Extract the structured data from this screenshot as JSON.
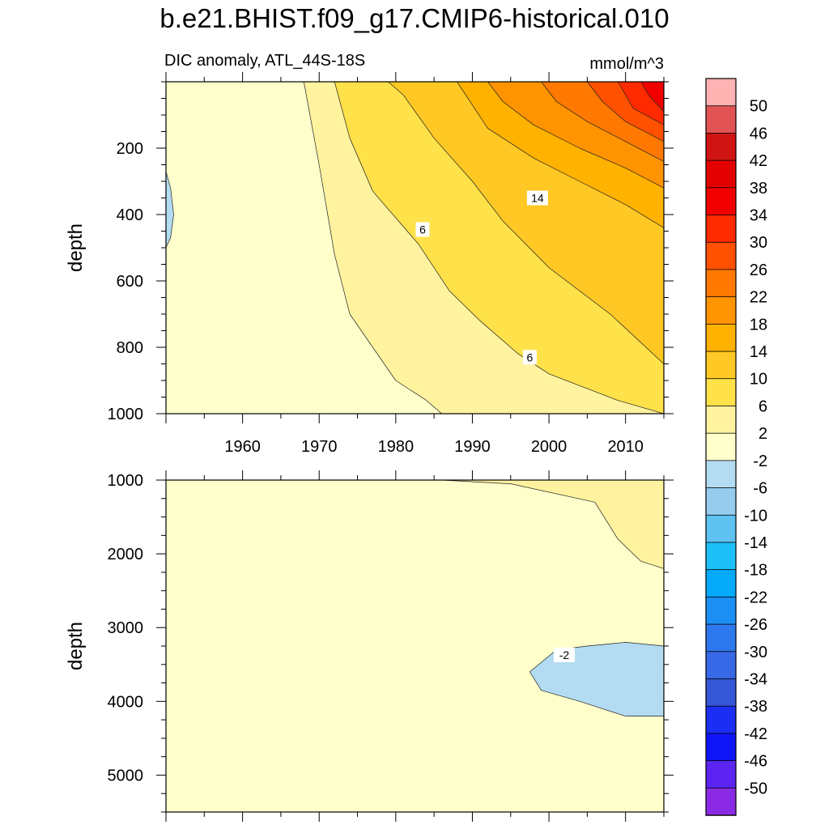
{
  "chart_data": [
    {
      "type": "heatmap",
      "title": "b.e21.BHIST.f09_g17.CMIP6-historical.010",
      "subtitle_left": "DIC anomaly, ATL_44S-18S",
      "subtitle_right": "mmol/m^3",
      "panel": "upper",
      "xlabel": "",
      "ylabel": "depth",
      "xlim": [
        1950,
        2015
      ],
      "ylim": [
        1000,
        0
      ],
      "xticks": [
        1960,
        1970,
        1980,
        1990,
        2000,
        2010
      ],
      "xtick_labels": [
        "1960",
        "1970",
        "1980",
        "1990",
        "2000",
        "2010"
      ],
      "yticks": [
        200,
        400,
        600,
        800,
        1000
      ],
      "ytick_labels": [
        "200",
        "400",
        "600",
        "800",
        "1000"
      ],
      "contour_labels": [
        {
          "text": "6",
          "x": 1983.5,
          "y": 445
        },
        {
          "text": "14",
          "x": 1998.5,
          "y": 350
        },
        {
          "text": "6",
          "x": 1997.5,
          "y": 830
        }
      ],
      "bands": [
        {
          "level": "-6 to -2",
          "color": "#b3dcf2",
          "x": [
            1950,
            1950.6,
            1951,
            1950.6,
            1950
          ],
          "y": [
            270,
            320,
            400,
            470,
            500
          ]
        },
        {
          "level": "2 to 6",
          "color": "#fff3a0",
          "x": [
            2015,
            1986,
            1984,
            1980,
            1974,
            1972,
            1970,
            1968,
            1968,
            2015
          ],
          "y": [
            1000,
            1000,
            960,
            900,
            700,
            520,
            250,
            0,
            0,
            0
          ]
        },
        {
          "level": "6 to 10",
          "color": "#ffe14a",
          "x": [
            2015,
            2009,
            2000,
            1996,
            1991,
            1987,
            1983,
            1977,
            1974,
            1972,
            1974,
            2015
          ],
          "y": [
            1000,
            960,
            880,
            820,
            720,
            630,
            490,
            330,
            170,
            0,
            0,
            0
          ]
        },
        {
          "level": "10 to 14",
          "color": "#ffc825",
          "x": [
            2015,
            2015,
            2008,
            2000,
            1994,
            1990,
            1985,
            1981,
            1979,
            2015
          ],
          "y": [
            0,
            850,
            700,
            560,
            420,
            300,
            170,
            40,
            0,
            0
          ]
        },
        {
          "level": "14 to 18",
          "color": "#ffb200",
          "x": [
            2015,
            2015,
            2010,
            2004,
            1998,
            1992,
            1988,
            2015
          ],
          "y": [
            0,
            440,
            370,
            300,
            230,
            140,
            0,
            0
          ]
        },
        {
          "level": "18 to 22",
          "color": "#ff9300",
          "x": [
            2015,
            2015,
            2010,
            2004,
            1998,
            1994,
            1992,
            2015
          ],
          "y": [
            0,
            320,
            260,
            200,
            130,
            60,
            0,
            0
          ]
        },
        {
          "level": "22 to 26",
          "color": "#ff7800",
          "x": [
            2015,
            2015,
            2010,
            2005,
            2001,
            1999,
            2015
          ],
          "y": [
            0,
            240,
            180,
            120,
            60,
            0,
            0
          ]
        },
        {
          "level": "26 to 30",
          "color": "#ff5100",
          "x": [
            2015,
            2015,
            2010,
            2007,
            2005,
            2015
          ],
          "y": [
            0,
            180,
            120,
            60,
            0,
            0
          ]
        },
        {
          "level": "30 to 34",
          "color": "#ff2a00",
          "x": [
            2015,
            2015,
            2011,
            2009,
            2015
          ],
          "y": [
            0,
            130,
            80,
            0,
            0
          ]
        },
        {
          "level": "34 to 38",
          "color": "#f20000",
          "x": [
            2015,
            2015,
            2013,
            2012,
            2015
          ],
          "y": [
            0,
            90,
            40,
            0,
            0
          ]
        }
      ]
    },
    {
      "type": "heatmap",
      "panel": "lower",
      "xlabel": "",
      "ylabel": "depth",
      "xlim": [
        1950,
        2015
      ],
      "ylim": [
        5500,
        1000
      ],
      "yticks": [
        1000,
        2000,
        3000,
        4000,
        5000
      ],
      "ytick_labels": [
        "1000",
        "2000",
        "3000",
        "4000",
        "5000"
      ],
      "contour_labels": [
        {
          "text": "-2",
          "x": 2002,
          "y": 3370
        }
      ],
      "bands": [
        {
          "level": "2 to 6",
          "color": "#fff3a0",
          "x": [
            1986,
            1995,
            2006,
            2009,
            2012,
            2015,
            2015
          ],
          "y": [
            1000,
            1050,
            1300,
            1800,
            2100,
            2200,
            1000
          ]
        },
        {
          "level": "-6 to -2",
          "color": "#b3dcf2",
          "x": [
            1997.5,
            2001,
            2005,
            2010,
            2015,
            2015,
            2010,
            2004,
            1999,
            1997.5
          ],
          "y": [
            3600,
            3300,
            3250,
            3200,
            3250,
            4200,
            4200,
            4000,
            3850,
            3600
          ]
        }
      ]
    },
    {
      "type": "colorbar",
      "labels": [
        "50",
        "46",
        "42",
        "38",
        "34",
        "30",
        "26",
        "22",
        "18",
        "14",
        "10",
        "6",
        "2",
        "-2",
        "-6",
        "-10",
        "-14",
        "-18",
        "-22",
        "-26",
        "-30",
        "-34",
        "-38",
        "-42",
        "-46",
        "-50"
      ],
      "colors": [
        "#ffb3b3",
        "#e25454",
        "#d01414",
        "#e30000",
        "#f20000",
        "#ff2a00",
        "#ff5100",
        "#ff7800",
        "#ff9300",
        "#ffb200",
        "#ffc825",
        "#ffe14a",
        "#fff3a0",
        "#ffffcc",
        "#b3dcf2",
        "#96cdee",
        "#5fc2f1",
        "#1cc0f7",
        "#03aaf9",
        "#1c8ff5",
        "#2e78ee",
        "#3768e5",
        "#3557d8",
        "#1a2ff3",
        "#1015f8",
        "#5b24f3",
        "#8b2ae4"
      ]
    }
  ]
}
